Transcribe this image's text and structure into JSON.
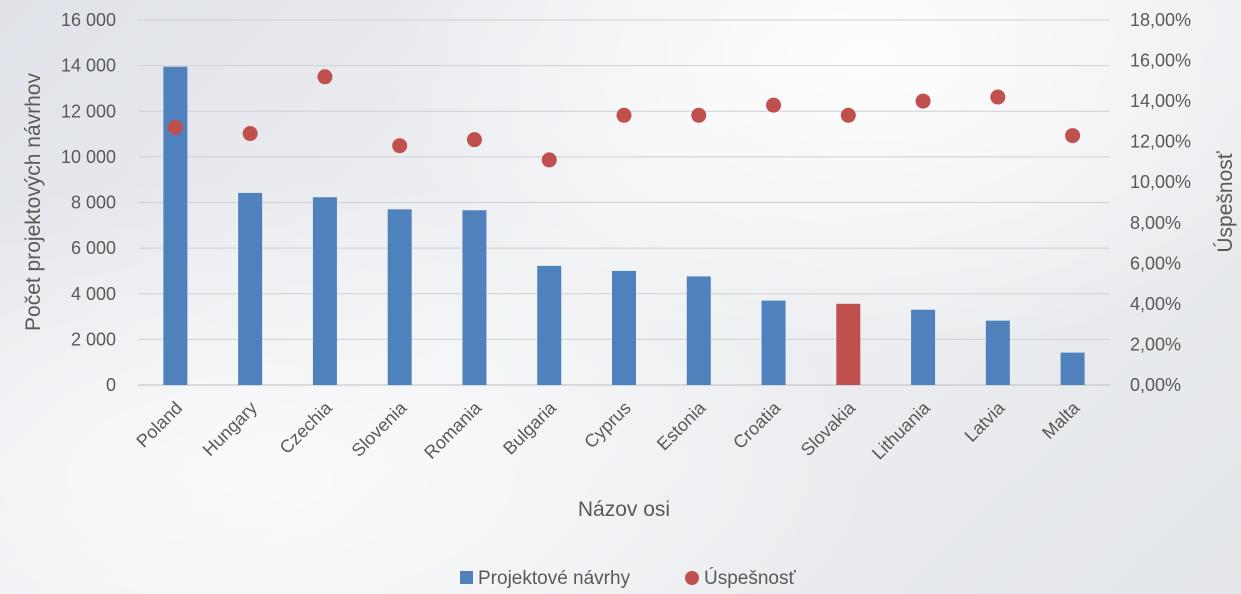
{
  "chart_data": {
    "type": "bar",
    "categories": [
      "Poland",
      "Hungary",
      "Czechia",
      "Slovenia",
      "Romania",
      "Bulgaria",
      "Cyprus",
      "Estonia",
      "Croatia",
      "Slovakia",
      "Lithuania",
      "Latvia",
      "Malta"
    ],
    "series": [
      {
        "name": "Projektové návrhy",
        "type": "bar",
        "axis": "left",
        "color": "#4f81bd",
        "highlight": {
          "category": "Slovakia",
          "color": "#c0504d"
        },
        "values": [
          13950,
          8420,
          8230,
          7700,
          7660,
          5220,
          5000,
          4760,
          3700,
          3560,
          3300,
          2820,
          1420
        ]
      },
      {
        "name": "Úspešnosť",
        "type": "scatter",
        "axis": "right",
        "color": "#c0504d",
        "values": [
          12.7,
          12.4,
          15.2,
          11.8,
          12.1,
          11.1,
          13.3,
          13.3,
          13.8,
          13.3,
          14.0,
          14.2,
          12.3
        ]
      }
    ],
    "title": "",
    "xlabel": "Názov osi",
    "ylabel": "Počet projektových návrhov",
    "y2label": "Úspešnosť",
    "ylim": [
      0,
      16000
    ],
    "y2lim": [
      0,
      18
    ],
    "yticks": [
      0,
      2000,
      4000,
      6000,
      8000,
      10000,
      12000,
      14000,
      16000
    ],
    "yticklabels": [
      "0",
      "2 000",
      "4 000",
      "6 000",
      "8 000",
      "10 000",
      "12 000",
      "14 000",
      "16 000"
    ],
    "y2ticks": [
      0,
      2,
      4,
      6,
      8,
      10,
      12,
      14,
      16,
      18
    ],
    "y2ticklabels": [
      "0,00%",
      "2,00%",
      "4,00%",
      "6,00%",
      "8,00%",
      "10,00%",
      "12,00%",
      "14,00%",
      "16,00%",
      "18,00%"
    ],
    "grid": true,
    "legend": "bottom"
  }
}
